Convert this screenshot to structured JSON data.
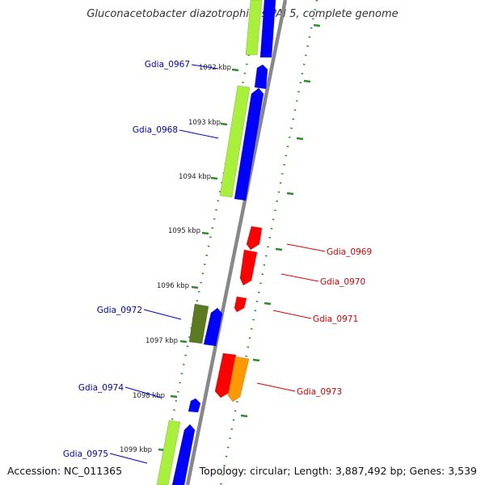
{
  "title": "Gluconacetobacter diazotrophicus PAI 5, complete genome",
  "accession": "Accession: NC_011365",
  "summary": "Topology: circular; Length: 3,887,492 bp; Genes: 3,539",
  "colors": {
    "forward_label": "#0000cc",
    "reverse_label": "#dd0000",
    "backbone": "#888888",
    "tick": "#2e8b2e",
    "blue_gene": "#0000ff",
    "lime_gene": "#a8f03a",
    "olive_gene": "#5c7a20",
    "red_gene": "#ff0000",
    "orange_gene": "#ff9900"
  },
  "kbp_marks": [
    "1092 kbp",
    "1093 kbp",
    "1094 kbp",
    "1095 kbp",
    "1096 kbp",
    "1097 kbp",
    "1098 kbp",
    "1099 kbp"
  ],
  "forward_genes": [
    "Gdia_0967",
    "Gdia_0968",
    "Gdia_0972",
    "Gdia_0974",
    "Gdia_0975"
  ],
  "reverse_genes": [
    "Gdia_0969",
    "Gdia_0970",
    "Gdia_0971",
    "Gdia_0973"
  ]
}
